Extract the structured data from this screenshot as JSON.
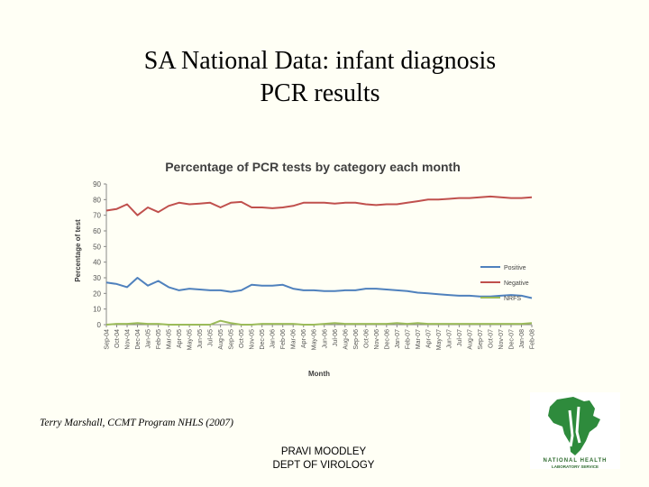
{
  "slide": {
    "title_line1": "SA National Data: infant diagnosis",
    "title_line2": "PCR results",
    "credit": "Terry Marshall, CCMT Program NHLS (2007)",
    "presenter_name": "PRAVI MOODLEY",
    "presenter_dept": "DEPT OF VIROLOGY",
    "logo_text_1": "NATIONAL HEALTH",
    "logo_text_2": "LABORATORY SERVICE"
  },
  "chart_data": {
    "type": "line",
    "title": "Percentage of PCR tests by category each month",
    "xlabel": "Month",
    "ylabel": "Percentage of test",
    "ylim": [
      0,
      90
    ],
    "yticks": [
      0,
      10,
      20,
      30,
      40,
      50,
      60,
      70,
      80,
      90
    ],
    "grid": false,
    "legend_position": "right",
    "categories": [
      "Sep-04",
      "Oct-04",
      "Nov-04",
      "Dec-04",
      "Jan-05",
      "Feb-05",
      "Mar-05",
      "Apr-05",
      "May-05",
      "Jun-05",
      "Jul-05",
      "Aug-05",
      "Sep-05",
      "Oct-05",
      "Nov-05",
      "Dec-05",
      "Jan-06",
      "Feb-06",
      "Mar-06",
      "Apr-06",
      "May-06",
      "Jun-06",
      "Jul-06",
      "Aug-06",
      "Sep-06",
      "Oct-06",
      "Nov-06",
      "Dec-06",
      "Jan-07",
      "Feb-07",
      "Mar-07",
      "Apr-07",
      "May-07",
      "Jun-07",
      "Jul-07",
      "Aug-07",
      "Sep-07",
      "Oct-07",
      "Nov-07",
      "Dec-07",
      "Jan-08",
      "Feb-08"
    ],
    "series": [
      {
        "name": "Positive",
        "color": "#4f81bd",
        "values": [
          27,
          26,
          24,
          30,
          25,
          28,
          24,
          22,
          23,
          22.5,
          22,
          22,
          21,
          22,
          25.5,
          25,
          25,
          25.5,
          23,
          22,
          22,
          21.5,
          21.5,
          22,
          22,
          23,
          23,
          22.5,
          22,
          21.5,
          20.5,
          20,
          19.5,
          19,
          18.5,
          18.5,
          18,
          18,
          18.5,
          19,
          18.5,
          17
        ]
      },
      {
        "name": "Negative",
        "color": "#c0504d",
        "values": [
          73,
          74,
          77,
          70,
          75,
          72,
          76,
          78,
          77,
          77.5,
          78,
          75,
          78,
          78.5,
          75,
          75,
          74.5,
          75,
          76,
          78,
          78,
          78,
          77.5,
          78,
          78,
          77,
          76.5,
          77,
          77,
          78,
          79,
          80,
          80,
          80.5,
          81,
          81,
          81.5,
          82,
          81.5,
          81,
          81,
          81.5
        ]
      },
      {
        "name": "NRFS",
        "color": "#9bbb59",
        "values": [
          0,
          0.5,
          0.5,
          1,
          0.5,
          0.5,
          0,
          0,
          0,
          0,
          0,
          2.5,
          1,
          0,
          0,
          0.5,
          0.5,
          0.5,
          0.5,
          0,
          0,
          0.5,
          1,
          0.5,
          0.5,
          0.5,
          0.5,
          0.5,
          1,
          0.5,
          1,
          0.5,
          0.5,
          0.5,
          0.5,
          0.5,
          0.5,
          0.5,
          0.5,
          0.5,
          0.5,
          1
        ]
      }
    ]
  }
}
